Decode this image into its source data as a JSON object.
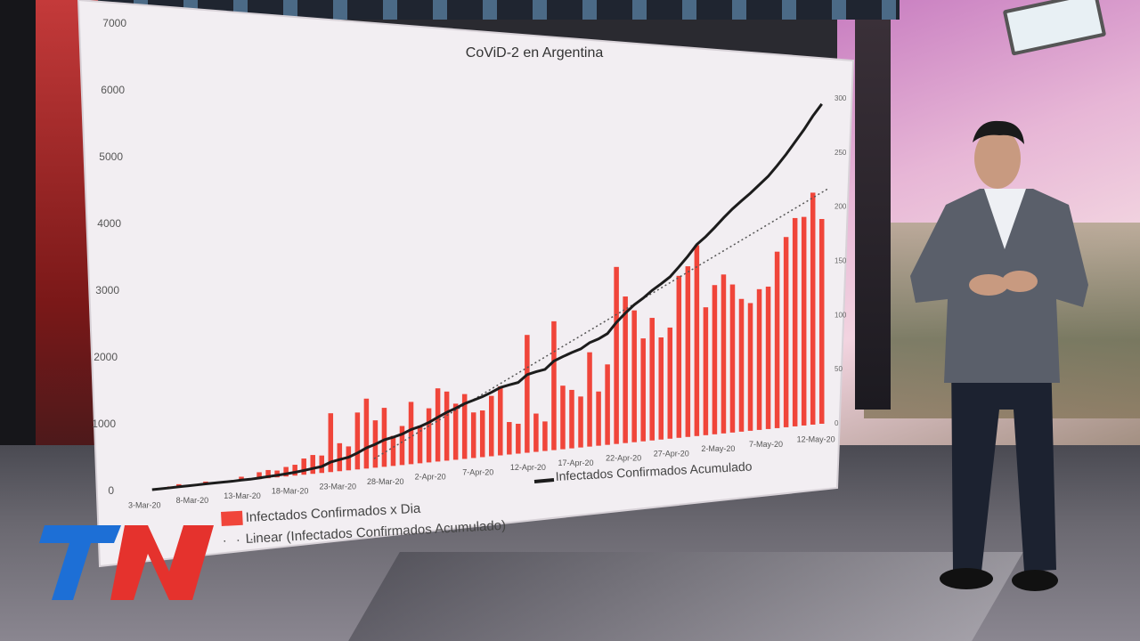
{
  "broadcast": {
    "logo_text": "TN",
    "logo_colors": {
      "left": "#1d6fd6",
      "right": "#e5322d"
    }
  },
  "chart_data": {
    "type": "bar",
    "title": "CoViD-2 en Argentina",
    "left_axis_ticks": [
      "0",
      "1000",
      "2000",
      "3000",
      "4000",
      "5000",
      "6000",
      "7000"
    ],
    "right_axis_ticks": [
      "0",
      "50",
      "100",
      "150",
      "200",
      "250",
      "300"
    ],
    "x_tick_labels": [
      "3-Mar-20",
      "8-Mar-20",
      "13-Mar-20",
      "18-Mar-20",
      "23-Mar-20",
      "28-Mar-20",
      "2-Apr-20",
      "7-Apr-20",
      "12-Apr-20",
      "17-Apr-20",
      "22-Apr-20",
      "27-Apr-20",
      "2-May-20",
      "7-May-20",
      "12-May-20"
    ],
    "legend": {
      "bars": "Infectados Confirmados x Dia",
      "line": "Infectados Confirmados Acumulado",
      "trend": "Linear (Infectados Confirmados Acumulado)"
    },
    "bar_values": [
      0,
      0,
      1,
      2,
      0,
      1,
      2,
      0,
      0,
      0,
      3,
      0,
      5,
      6,
      5,
      7,
      8,
      12,
      14,
      13,
      44,
      21,
      18,
      43,
      53,
      36,
      45,
      23,
      30,
      48,
      29,
      42,
      57,
      54,
      44,
      51,
      36,
      37,
      48,
      55,
      26,
      24,
      95,
      31,
      24,
      105,
      52,
      48,
      42,
      78,
      45,
      67,
      148,
      123,
      111,
      87,
      104,
      87,
      95,
      139,
      147,
      165,
      111,
      130,
      139,
      130,
      117,
      113,
      125,
      127,
      158,
      171,
      188,
      189,
      211,
      187
    ],
    "bar_color": "#f0453a",
    "line_color": "#1c1c1c",
    "trend_color": "#555555",
    "left_ylim": [
      0,
      7000
    ],
    "right_ylim": [
      0,
      300
    ]
  }
}
